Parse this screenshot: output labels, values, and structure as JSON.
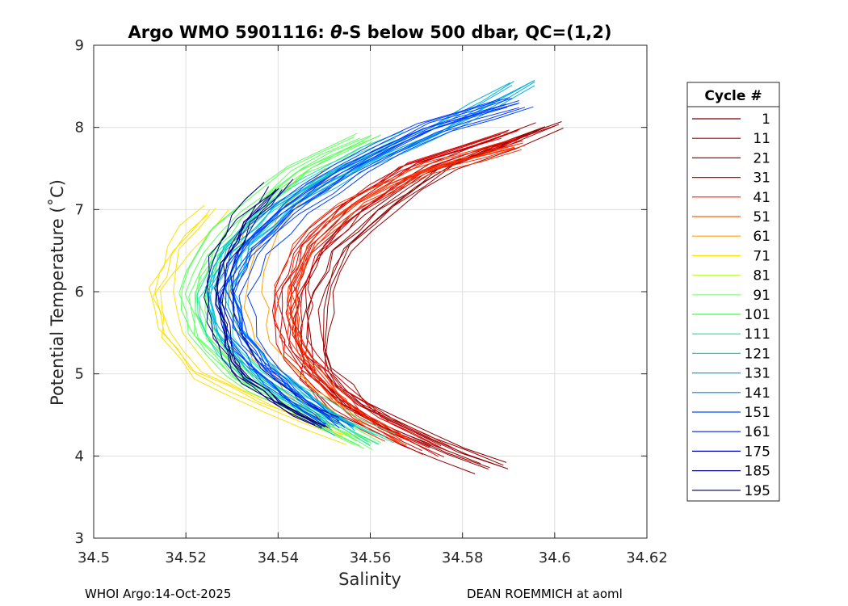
{
  "chart_data": {
    "type": "line",
    "title_prefix": "Argo WMO 5901116: ",
    "title_theta": "θ",
    "title_suffix": "-S below 500 dbar,  QC=(1,2)",
    "xlabel": "Salinity",
    "ylabel": "Potential Temperature (˚C)",
    "xlim": [
      34.5,
      34.62
    ],
    "ylim": [
      3,
      9
    ],
    "xticks": [
      "34.5",
      "34.52",
      "34.54",
      "34.56",
      "34.58",
      "34.6",
      "34.62"
    ],
    "yticks": [
      "3",
      "4",
      "5",
      "6",
      "7",
      "8",
      "9"
    ],
    "grid": true,
    "legend": {
      "title": "Cycle #",
      "position": "right",
      "entries": [
        {
          "label": "1",
          "color": "#800000"
        },
        {
          "label": "11",
          "color": "#a00000"
        },
        {
          "label": "21",
          "color": "#c00000"
        },
        {
          "label": "31",
          "color": "#e00000"
        },
        {
          "label": "41",
          "color": "#ff2000"
        },
        {
          "label": "51",
          "color": "#ff6000"
        },
        {
          "label": "61",
          "color": "#ffa000"
        },
        {
          "label": "71",
          "color": "#ffe000"
        },
        {
          "label": "81",
          "color": "#c0ff40"
        },
        {
          "label": "91",
          "color": "#80ff80"
        },
        {
          "label": "101",
          "color": "#40ff40"
        },
        {
          "label": "111",
          "color": "#20e0a0"
        },
        {
          "label": "121",
          "color": "#00e0e0"
        },
        {
          "label": "131",
          "color": "#00b0e0"
        },
        {
          "label": "141",
          "color": "#0080ff"
        },
        {
          "label": "151",
          "color": "#0050ff"
        },
        {
          "label": "161",
          "color": "#0020e0"
        },
        {
          "label": "175",
          "color": "#0000c0"
        },
        {
          "label": "185",
          "color": "#000080"
        },
        {
          "label": "195",
          "color": "#000040"
        }
      ]
    },
    "profile_groups": [
      {
        "color": "#900000",
        "count": 8,
        "points": [
          [
            34.586,
            3.85
          ],
          [
            34.57,
            4.2
          ],
          [
            34.555,
            4.6
          ],
          [
            34.548,
            5.0
          ],
          [
            34.547,
            5.5
          ],
          [
            34.548,
            6.0
          ],
          [
            34.552,
            6.5
          ],
          [
            34.562,
            7.0
          ],
          [
            34.575,
            7.5
          ],
          [
            34.598,
            8.0
          ]
        ]
      },
      {
        "color": "#d00000",
        "count": 10,
        "points": [
          [
            34.575,
            4.05
          ],
          [
            34.562,
            4.4
          ],
          [
            34.552,
            4.8
          ],
          [
            34.545,
            5.2
          ],
          [
            34.543,
            5.6
          ],
          [
            34.543,
            6.0
          ],
          [
            34.547,
            6.5
          ],
          [
            34.556,
            7.0
          ],
          [
            34.57,
            7.5
          ],
          [
            34.592,
            7.9
          ]
        ]
      },
      {
        "color": "#ff3000",
        "count": 8,
        "points": [
          [
            34.565,
            4.2
          ],
          [
            34.555,
            4.5
          ],
          [
            34.548,
            4.9
          ],
          [
            34.543,
            5.3
          ],
          [
            34.541,
            5.7
          ],
          [
            34.541,
            6.1
          ],
          [
            34.545,
            6.6
          ],
          [
            34.555,
            7.1
          ],
          [
            34.57,
            7.5
          ],
          [
            34.59,
            7.8
          ]
        ]
      },
      {
        "color": "#ffa000",
        "count": 3,
        "points": [
          [
            34.555,
            4.4
          ],
          [
            34.545,
            4.8
          ],
          [
            34.538,
            5.2
          ],
          [
            34.534,
            5.6
          ],
          [
            34.533,
            6.0
          ],
          [
            34.535,
            6.5
          ],
          [
            34.54,
            7.0
          ],
          [
            34.55,
            7.5
          ]
        ]
      },
      {
        "color": "#ffe000",
        "count": 5,
        "points": [
          [
            34.558,
            4.2
          ],
          [
            34.54,
            4.6
          ],
          [
            34.525,
            5.0
          ],
          [
            34.518,
            5.5
          ],
          [
            34.516,
            6.0
          ],
          [
            34.52,
            6.5
          ],
          [
            34.528,
            7.0
          ]
        ]
      },
      {
        "color": "#60ff60",
        "count": 9,
        "points": [
          [
            34.56,
            4.15
          ],
          [
            34.545,
            4.6
          ],
          [
            34.532,
            5.0
          ],
          [
            34.524,
            5.5
          ],
          [
            34.522,
            6.0
          ],
          [
            34.526,
            6.5
          ],
          [
            34.534,
            7.0
          ],
          [
            34.545,
            7.5
          ],
          [
            34.56,
            7.9
          ]
        ]
      },
      {
        "color": "#20e0b0",
        "count": 7,
        "points": [
          [
            34.562,
            4.2
          ],
          [
            34.548,
            4.6
          ],
          [
            34.535,
            5.0
          ],
          [
            34.527,
            5.5
          ],
          [
            34.525,
            6.0
          ],
          [
            34.529,
            6.5
          ],
          [
            34.538,
            7.0
          ],
          [
            34.552,
            7.5
          ],
          [
            34.568,
            7.9
          ]
        ]
      },
      {
        "color": "#00b0e0",
        "count": 8,
        "points": [
          [
            34.555,
            4.3
          ],
          [
            34.545,
            4.7
          ],
          [
            34.536,
            5.1
          ],
          [
            34.53,
            5.5
          ],
          [
            34.528,
            6.0
          ],
          [
            34.532,
            6.5
          ],
          [
            34.542,
            7.0
          ],
          [
            34.558,
            7.5
          ],
          [
            34.578,
            8.0
          ],
          [
            34.594,
            8.5
          ]
        ]
      },
      {
        "color": "#0040ff",
        "count": 12,
        "points": [
          [
            34.553,
            4.4
          ],
          [
            34.544,
            4.75
          ],
          [
            34.537,
            5.1
          ],
          [
            34.532,
            5.5
          ],
          [
            34.53,
            6.0
          ],
          [
            34.534,
            6.5
          ],
          [
            34.543,
            7.0
          ],
          [
            34.556,
            7.5
          ],
          [
            34.574,
            8.0
          ],
          [
            34.592,
            8.3
          ]
        ]
      },
      {
        "color": "#000080",
        "count": 8,
        "points": [
          [
            34.55,
            4.4
          ],
          [
            34.54,
            4.7
          ],
          [
            34.533,
            5.0
          ],
          [
            34.529,
            5.4
          ],
          [
            34.527,
            5.9
          ],
          [
            34.528,
            6.4
          ],
          [
            34.533,
            6.9
          ],
          [
            34.54,
            7.3
          ]
        ]
      }
    ]
  },
  "footer": {
    "left": "WHOI Argo:14-Oct-2025",
    "right": "DEAN ROEMMICH at aoml"
  }
}
